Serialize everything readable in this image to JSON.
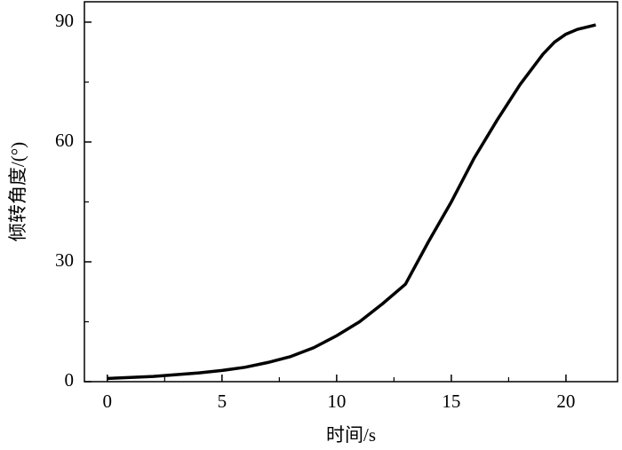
{
  "chart_data": {
    "type": "line",
    "x_label": "时间/s",
    "y_label": "倾转角度/(°)",
    "x": [
      0,
      2,
      4,
      5,
      6,
      7,
      8,
      9,
      10,
      11,
      12,
      13,
      14,
      15,
      16,
      17,
      18,
      19,
      19.5,
      20,
      20.5,
      21,
      21.3
    ],
    "series": [
      {
        "color": "#000000",
        "values": [
          0.8,
          1.3,
          2.2,
          2.8,
          3.6,
          4.8,
          6.3,
          8.5,
          11.5,
          15.0,
          19.5,
          24.4,
          35,
          45,
          56,
          65.5,
          74.4,
          82,
          85,
          87,
          88.2,
          88.9,
          89.3
        ]
      }
    ],
    "xlim": [
      -1,
      22.25
    ],
    "ylim": [
      0,
      95.1
    ],
    "xticks": [
      0,
      5,
      10,
      15,
      20
    ],
    "yticks": [
      0,
      30,
      60,
      90
    ],
    "xminorticks": [
      2.5,
      7.5,
      12.5,
      17.5
    ],
    "yminorticks": [
      15,
      45,
      75
    ]
  }
}
